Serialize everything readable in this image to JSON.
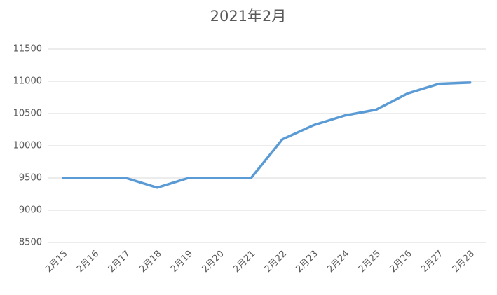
{
  "chart_data": {
    "type": "line",
    "title": "2021年2月",
    "categories": [
      "2月15",
      "2月16",
      "2月17",
      "2月18",
      "2月19",
      "2月20",
      "2月21",
      "2月22",
      "2月23",
      "2月24",
      "2月25",
      "2月26",
      "2月27",
      "2月28"
    ],
    "values": [
      9500,
      9500,
      9500,
      9350,
      9500,
      9500,
      9500,
      10100,
      10320,
      10470,
      10560,
      10810,
      10960,
      10980
    ],
    "color": "#5b9bd5",
    "ylim": [
      8500,
      11500
    ],
    "yticks": [
      8500,
      9000,
      9500,
      10000,
      10500,
      11000,
      11500
    ],
    "grid": true
  }
}
